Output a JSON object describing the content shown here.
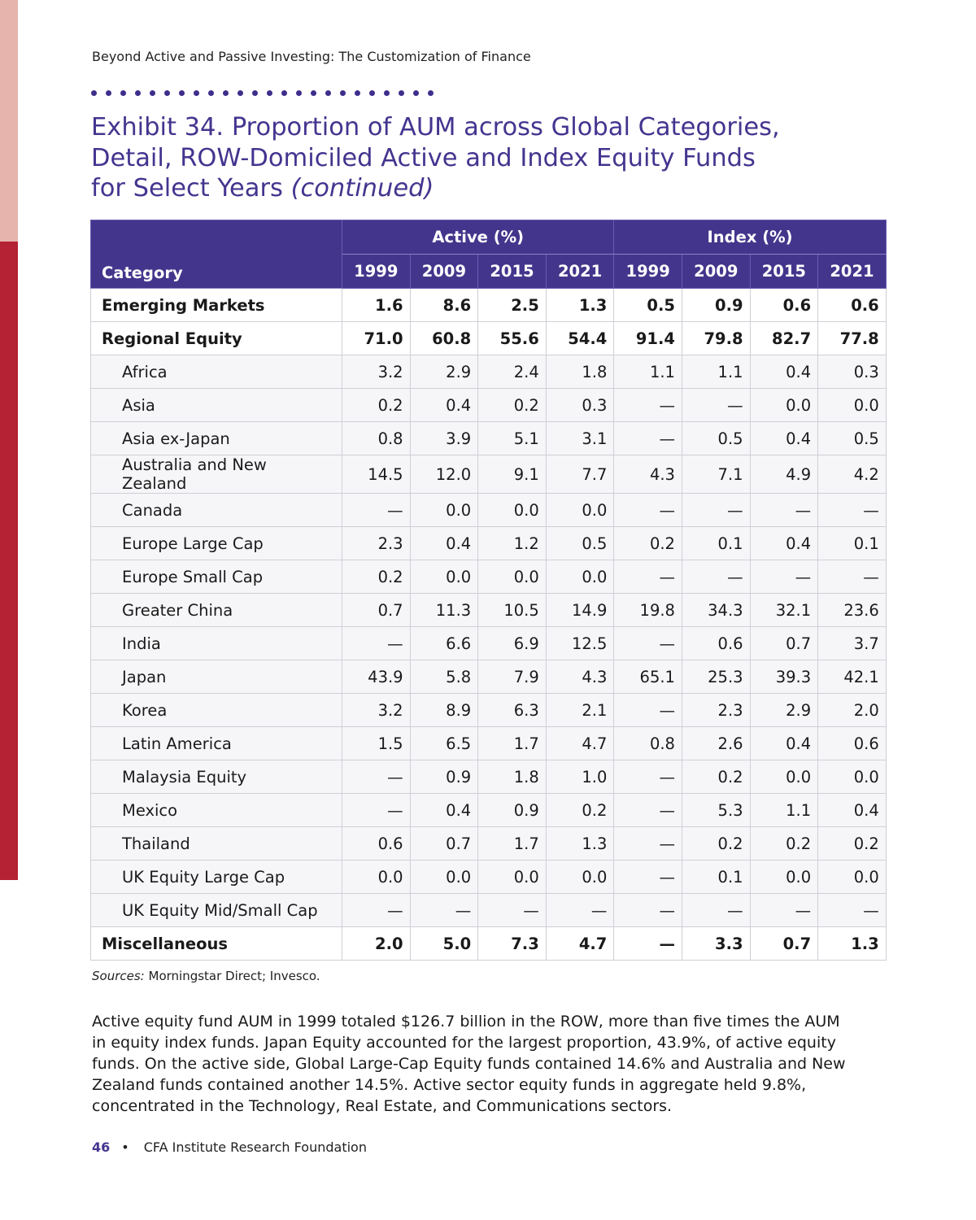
{
  "running_head": "Beyond Active and Passive Investing: The Customization of Finance",
  "exhibit": {
    "title": "Exhibit 34. Proportion of AUM across Global Categories, Detail, ROW-Domiciled Active and Index Equity Funds for Select Years",
    "title_suffix": "(continued)"
  },
  "table": {
    "category_header": "Category",
    "group_headers": [
      "Active (%)",
      "Index (%)"
    ],
    "years": [
      "1999",
      "2009",
      "2015",
      "2021",
      "1999",
      "2009",
      "2015",
      "2021"
    ],
    "rows": [
      {
        "label": "Emerging Markets",
        "bold": true,
        "values": [
          "1.6",
          "8.6",
          "2.5",
          "1.3",
          "0.5",
          "0.9",
          "0.6",
          "0.6"
        ]
      },
      {
        "label": "Regional Equity",
        "bold": true,
        "values": [
          "71.0",
          "60.8",
          "55.6",
          "54.4",
          "91.4",
          "79.8",
          "82.7",
          "77.8"
        ]
      },
      {
        "label": "Africa",
        "bold": false,
        "values": [
          "3.2",
          "2.9",
          "2.4",
          "1.8",
          "1.1",
          "1.1",
          "0.4",
          "0.3"
        ]
      },
      {
        "label": "Asia",
        "bold": false,
        "values": [
          "0.2",
          "0.4",
          "0.2",
          "0.3",
          "—",
          "—",
          "0.0",
          "0.0"
        ]
      },
      {
        "label": "Asia ex-Japan",
        "bold": false,
        "values": [
          "0.8",
          "3.9",
          "5.1",
          "3.1",
          "—",
          "0.5",
          "0.4",
          "0.5"
        ]
      },
      {
        "label": "Australia and New Zealand",
        "bold": false,
        "values": [
          "14.5",
          "12.0",
          "9.1",
          "7.7",
          "4.3",
          "7.1",
          "4.9",
          "4.2"
        ]
      },
      {
        "label": "Canada",
        "bold": false,
        "values": [
          "—",
          "0.0",
          "0.0",
          "0.0",
          "—",
          "—",
          "—",
          "—"
        ]
      },
      {
        "label": "Europe Large Cap",
        "bold": false,
        "values": [
          "2.3",
          "0.4",
          "1.2",
          "0.5",
          "0.2",
          "0.1",
          "0.4",
          "0.1"
        ]
      },
      {
        "label": "Europe Small Cap",
        "bold": false,
        "values": [
          "0.2",
          "0.0",
          "0.0",
          "0.0",
          "—",
          "—",
          "—",
          "—"
        ]
      },
      {
        "label": "Greater China",
        "bold": false,
        "values": [
          "0.7",
          "11.3",
          "10.5",
          "14.9",
          "19.8",
          "34.3",
          "32.1",
          "23.6"
        ]
      },
      {
        "label": "India",
        "bold": false,
        "values": [
          "—",
          "6.6",
          "6.9",
          "12.5",
          "—",
          "0.6",
          "0.7",
          "3.7"
        ]
      },
      {
        "label": "Japan",
        "bold": false,
        "values": [
          "43.9",
          "5.8",
          "7.9",
          "4.3",
          "65.1",
          "25.3",
          "39.3",
          "42.1"
        ]
      },
      {
        "label": "Korea",
        "bold": false,
        "values": [
          "3.2",
          "8.9",
          "6.3",
          "2.1",
          "—",
          "2.3",
          "2.9",
          "2.0"
        ]
      },
      {
        "label": "Latin America",
        "bold": false,
        "values": [
          "1.5",
          "6.5",
          "1.7",
          "4.7",
          "0.8",
          "2.6",
          "0.4",
          "0.6"
        ]
      },
      {
        "label": "Malaysia Equity",
        "bold": false,
        "values": [
          "—",
          "0.9",
          "1.8",
          "1.0",
          "—",
          "0.2",
          "0.0",
          "0.0"
        ]
      },
      {
        "label": "Mexico",
        "bold": false,
        "values": [
          "—",
          "0.4",
          "0.9",
          "0.2",
          "—",
          "5.3",
          "1.1",
          "0.4"
        ]
      },
      {
        "label": "Thailand",
        "bold": false,
        "values": [
          "0.6",
          "0.7",
          "1.7",
          "1.3",
          "—",
          "0.2",
          "0.2",
          "0.2"
        ]
      },
      {
        "label": "UK Equity Large Cap",
        "bold": false,
        "values": [
          "0.0",
          "0.0",
          "0.0",
          "0.0",
          "—",
          "0.1",
          "0.0",
          "0.0"
        ]
      },
      {
        "label": "UK Equity Mid/Small Cap",
        "bold": false,
        "values": [
          "—",
          "—",
          "—",
          "—",
          "—",
          "—",
          "—",
          "—"
        ]
      },
      {
        "label": "Miscellaneous",
        "bold": true,
        "values": [
          "2.0",
          "5.0",
          "7.3",
          "4.7",
          "—",
          "3.3",
          "0.7",
          "1.3"
        ]
      }
    ]
  },
  "sources": {
    "label": "Sources:",
    "text": "Morningstar Direct; Invesco."
  },
  "body_paragraph": "Active equity fund AUM in 1999 totaled $126.7 billion in the ROW, more than five times the AUM in equity index funds. Japan Equity accounted for the largest proportion, 43.9%, of active equity funds. On the active side, Global Large-Cap Equity funds contained 14.6% and Australia and New Zealand funds contained another 14.5%. Active sector equity funds in aggregate held 9.8%, concentrated in the Technology, Real Estate, and Communications sectors.",
  "footer": {
    "page_number": "46",
    "bullet": "•",
    "publisher": "CFA Institute Research Foundation"
  },
  "colors": {
    "accent_purple": "#45348f",
    "header_fill": "#44358c",
    "side_red": "#b52233",
    "side_pink": "#e6b3ad"
  }
}
